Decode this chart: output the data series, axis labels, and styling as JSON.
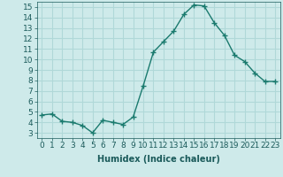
{
  "x": [
    0,
    1,
    2,
    3,
    4,
    5,
    6,
    7,
    8,
    9,
    10,
    11,
    12,
    13,
    14,
    15,
    16,
    17,
    18,
    19,
    20,
    21,
    22,
    23
  ],
  "y": [
    4.7,
    4.8,
    4.1,
    4.0,
    3.7,
    3.0,
    4.2,
    4.0,
    3.8,
    4.5,
    7.5,
    10.7,
    11.7,
    12.7,
    14.3,
    15.2,
    15.1,
    13.5,
    12.3,
    10.4,
    9.8,
    8.7,
    7.9,
    7.9
  ],
  "line_color": "#1a7a6e",
  "marker": "+",
  "marker_size": 4,
  "bg_color": "#ceeaea",
  "grid_color": "#b0d8d8",
  "xlabel": "Humidex (Indice chaleur)",
  "ylim_min": 2.5,
  "ylim_max": 15.5,
  "xlim_min": -0.5,
  "xlim_max": 23.5,
  "yticks": [
    3,
    4,
    5,
    6,
    7,
    8,
    9,
    10,
    11,
    12,
    13,
    14,
    15
  ],
  "xticks": [
    0,
    1,
    2,
    3,
    4,
    5,
    6,
    7,
    8,
    9,
    10,
    11,
    12,
    13,
    14,
    15,
    16,
    17,
    18,
    19,
    20,
    21,
    22,
    23
  ],
  "xlabel_fontsize": 7,
  "tick_fontsize": 6.5,
  "linewidth": 1.0,
  "marker_linewidth": 1.0
}
